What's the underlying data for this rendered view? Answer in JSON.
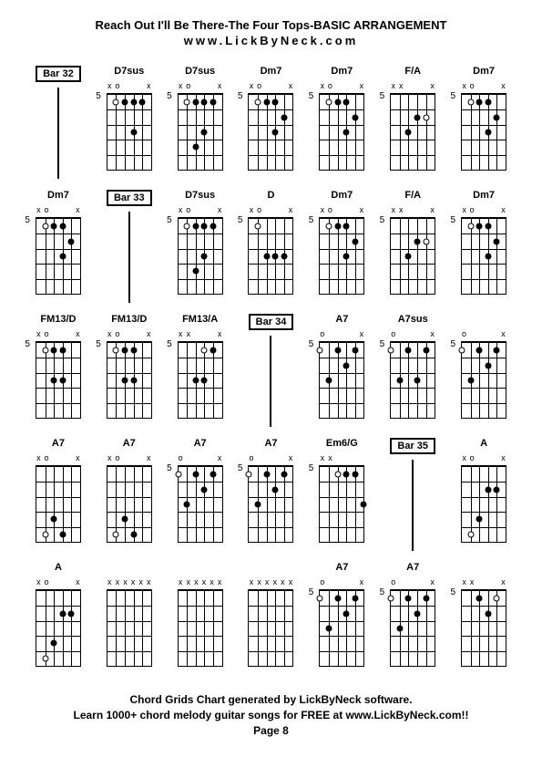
{
  "header": {
    "title": "Reach Out I'll Be There-The Four Tops-BASIC ARRANGEMENT",
    "subtitle": "www.LickByNeck.com"
  },
  "footer": {
    "line1": "Chord Grids Chart generated by LickByNeck software.",
    "line2": "Learn 1000+ chord melody guitar songs for FREE at www.LickByNeck.com!!",
    "line3": "Page 8"
  },
  "chart": {
    "grid_cols": 7,
    "string_count": 6,
    "fret_count": 5,
    "colors": {
      "bg": "#ffffff",
      "ink": "#000000"
    },
    "font_sizes": {
      "title": 13,
      "label": 11,
      "fret_num": 10,
      "footer": 12
    }
  },
  "chords": [
    {
      "type": "bar",
      "label": "Bar 32"
    },
    {
      "type": "chord",
      "label": "D7sus",
      "fret": "5",
      "markers": [
        "x",
        "o",
        "",
        "",
        "",
        "x"
      ],
      "dots": [
        {
          "s": 1,
          "f": 1,
          "o": 1
        },
        {
          "s": 2,
          "f": 1,
          "o": 0
        },
        {
          "s": 3,
          "f": 1,
          "o": 0
        },
        {
          "s": 4,
          "f": 1,
          "o": 0
        },
        {
          "s": 3,
          "f": 3,
          "o": 0
        }
      ]
    },
    {
      "type": "chord",
      "label": "D7sus",
      "fret": "5",
      "markers": [
        "x",
        "o",
        "",
        "",
        "",
        "x"
      ],
      "dots": [
        {
          "s": 1,
          "f": 1,
          "o": 1
        },
        {
          "s": 2,
          "f": 1,
          "o": 0
        },
        {
          "s": 3,
          "f": 1,
          "o": 0
        },
        {
          "s": 4,
          "f": 1,
          "o": 0
        },
        {
          "s": 2,
          "f": 4,
          "o": 0
        },
        {
          "s": 3,
          "f": 3,
          "o": 0
        }
      ]
    },
    {
      "type": "chord",
      "label": "Dm7",
      "fret": "5",
      "markers": [
        "x",
        "o",
        "",
        "",
        "",
        "x"
      ],
      "dots": [
        {
          "s": 1,
          "f": 1,
          "o": 1
        },
        {
          "s": 2,
          "f": 1,
          "o": 0
        },
        {
          "s": 3,
          "f": 1,
          "o": 0
        },
        {
          "s": 4,
          "f": 2,
          "o": 0
        },
        {
          "s": 3,
          "f": 3,
          "o": 0
        }
      ]
    },
    {
      "type": "chord",
      "label": "Dm7",
      "fret": "5",
      "markers": [
        "x",
        "o",
        "",
        "",
        "",
        "x"
      ],
      "dots": [
        {
          "s": 1,
          "f": 1,
          "o": 1
        },
        {
          "s": 2,
          "f": 1,
          "o": 0
        },
        {
          "s": 3,
          "f": 1,
          "o": 0
        },
        {
          "s": 4,
          "f": 2,
          "o": 0
        },
        {
          "s": 3,
          "f": 3,
          "o": 0
        }
      ]
    },
    {
      "type": "chord",
      "label": "F/A",
      "fret": "5",
      "markers": [
        "x",
        "x",
        "",
        "",
        "",
        "x"
      ],
      "dots": [
        {
          "s": 2,
          "f": 3,
          "o": 0
        },
        {
          "s": 3,
          "f": 2,
          "o": 0
        },
        {
          "s": 4,
          "f": 2,
          "o": 1
        }
      ]
    },
    {
      "type": "chord",
      "label": "Dm7",
      "fret": "5",
      "markers": [
        "x",
        "o",
        "",
        "",
        "",
        "x"
      ],
      "dots": [
        {
          "s": 1,
          "f": 1,
          "o": 1
        },
        {
          "s": 2,
          "f": 1,
          "o": 0
        },
        {
          "s": 3,
          "f": 1,
          "o": 0
        },
        {
          "s": 4,
          "f": 2,
          "o": 0
        },
        {
          "s": 3,
          "f": 3,
          "o": 0
        }
      ]
    },
    {
      "type": "chord",
      "label": "Dm7",
      "fret": "5",
      "markers": [
        "x",
        "o",
        "",
        "",
        "",
        "x"
      ],
      "dots": [
        {
          "s": 1,
          "f": 1,
          "o": 1
        },
        {
          "s": 2,
          "f": 1,
          "o": 0
        },
        {
          "s": 3,
          "f": 1,
          "o": 0
        },
        {
          "s": 4,
          "f": 2,
          "o": 0
        },
        {
          "s": 3,
          "f": 3,
          "o": 0
        }
      ]
    },
    {
      "type": "bar",
      "label": "Bar 33"
    },
    {
      "type": "chord",
      "label": "D7sus",
      "fret": "5",
      "markers": [
        "x",
        "o",
        "",
        "",
        "",
        "x"
      ],
      "dots": [
        {
          "s": 1,
          "f": 1,
          "o": 1
        },
        {
          "s": 2,
          "f": 1,
          "o": 0
        },
        {
          "s": 3,
          "f": 1,
          "o": 0
        },
        {
          "s": 4,
          "f": 1,
          "o": 0
        },
        {
          "s": 2,
          "f": 4,
          "o": 0
        },
        {
          "s": 3,
          "f": 3,
          "o": 0
        }
      ]
    },
    {
      "type": "chord",
      "label": "D",
      "fret": "5",
      "markers": [
        "x",
        "o",
        "",
        "",
        "",
        "x"
      ],
      "dots": [
        {
          "s": 1,
          "f": 1,
          "o": 1
        },
        {
          "s": 2,
          "f": 3,
          "o": 0
        },
        {
          "s": 3,
          "f": 3,
          "o": 0
        },
        {
          "s": 4,
          "f": 3,
          "o": 0
        }
      ]
    },
    {
      "type": "chord",
      "label": "Dm7",
      "fret": "5",
      "markers": [
        "x",
        "o",
        "",
        "",
        "",
        "x"
      ],
      "dots": [
        {
          "s": 1,
          "f": 1,
          "o": 1
        },
        {
          "s": 2,
          "f": 1,
          "o": 0
        },
        {
          "s": 3,
          "f": 1,
          "o": 0
        },
        {
          "s": 4,
          "f": 2,
          "o": 0
        },
        {
          "s": 3,
          "f": 3,
          "o": 0
        }
      ]
    },
    {
      "type": "chord",
      "label": "F/A",
      "fret": "5",
      "markers": [
        "x",
        "x",
        "",
        "",
        "",
        "x"
      ],
      "dots": [
        {
          "s": 2,
          "f": 3,
          "o": 0
        },
        {
          "s": 3,
          "f": 2,
          "o": 0
        },
        {
          "s": 4,
          "f": 2,
          "o": 1
        }
      ]
    },
    {
      "type": "chord",
      "label": "Dm7",
      "fret": "5",
      "markers": [
        "x",
        "o",
        "",
        "",
        "",
        "x"
      ],
      "dots": [
        {
          "s": 1,
          "f": 1,
          "o": 1
        },
        {
          "s": 2,
          "f": 1,
          "o": 0
        },
        {
          "s": 3,
          "f": 1,
          "o": 0
        },
        {
          "s": 4,
          "f": 2,
          "o": 0
        },
        {
          "s": 3,
          "f": 3,
          "o": 0
        }
      ]
    },
    {
      "type": "chord",
      "label": "FM13/D",
      "fret": "5",
      "markers": [
        "x",
        "o",
        "",
        "",
        "",
        "x"
      ],
      "dots": [
        {
          "s": 1,
          "f": 1,
          "o": 1
        },
        {
          "s": 2,
          "f": 1,
          "o": 0
        },
        {
          "s": 3,
          "f": 1,
          "o": 0
        },
        {
          "s": 2,
          "f": 3,
          "o": 0
        },
        {
          "s": 3,
          "f": 3,
          "o": 0
        }
      ]
    },
    {
      "type": "chord",
      "label": "FM13/D",
      "fret": "5",
      "markers": [
        "x",
        "o",
        "",
        "",
        "",
        "x"
      ],
      "dots": [
        {
          "s": 1,
          "f": 1,
          "o": 1
        },
        {
          "s": 2,
          "f": 1,
          "o": 0
        },
        {
          "s": 3,
          "f": 1,
          "o": 0
        },
        {
          "s": 2,
          "f": 3,
          "o": 0
        },
        {
          "s": 3,
          "f": 3,
          "o": 0
        }
      ]
    },
    {
      "type": "chord",
      "label": "FM13/A",
      "fret": "5",
      "markers": [
        "x",
        "x",
        "",
        "",
        "",
        "x"
      ],
      "dots": [
        {
          "s": 2,
          "f": 3,
          "o": 0
        },
        {
          "s": 3,
          "f": 3,
          "o": 0
        },
        {
          "s": 4,
          "f": 1,
          "o": 0
        },
        {
          "s": 3,
          "f": 1,
          "o": 1
        }
      ]
    },
    {
      "type": "bar",
      "label": "Bar 34"
    },
    {
      "type": "chord",
      "label": "A7",
      "fret": "5",
      "markers": [
        "o",
        "",
        "",
        "",
        "",
        "x"
      ],
      "dots": [
        {
          "s": 0,
          "f": 1,
          "o": 1
        },
        {
          "s": 1,
          "f": 3,
          "o": 0
        },
        {
          "s": 2,
          "f": 1,
          "o": 0
        },
        {
          "s": 3,
          "f": 2,
          "o": 0
        },
        {
          "s": 4,
          "f": 1,
          "o": 0
        }
      ]
    },
    {
      "type": "chord",
      "label": "A7sus",
      "fret": "5",
      "markers": [
        "o",
        "",
        "",
        "",
        "",
        "x"
      ],
      "dots": [
        {
          "s": 0,
          "f": 1,
          "o": 1
        },
        {
          "s": 1,
          "f": 3,
          "o": 0
        },
        {
          "s": 2,
          "f": 1,
          "o": 0
        },
        {
          "s": 3,
          "f": 3,
          "o": 0
        },
        {
          "s": 4,
          "f": 1,
          "o": 0
        }
      ]
    },
    {
      "type": "chord",
      "label": "",
      "fret": "5",
      "markers": [
        "o",
        "",
        "",
        "",
        "",
        "x"
      ],
      "dots": [
        {
          "s": 0,
          "f": 1,
          "o": 1
        },
        {
          "s": 1,
          "f": 3,
          "o": 0
        },
        {
          "s": 2,
          "f": 1,
          "o": 0
        },
        {
          "s": 3,
          "f": 2,
          "o": 0
        },
        {
          "s": 4,
          "f": 1,
          "o": 0
        }
      ]
    },
    {
      "type": "chord",
      "label": "A7",
      "fret": "",
      "markers": [
        "x",
        "o",
        "",
        "",
        "",
        "x"
      ],
      "dots": [
        {
          "s": 1,
          "f": 5,
          "o": 1
        },
        {
          "s": 2,
          "f": 4,
          "o": 0
        },
        {
          "s": 3,
          "f": 5,
          "o": 0
        }
      ]
    },
    {
      "type": "chord",
      "label": "A7",
      "fret": "",
      "markers": [
        "x",
        "o",
        "",
        "",
        "",
        "x"
      ],
      "dots": [
        {
          "s": 1,
          "f": 5,
          "o": 1
        },
        {
          "s": 2,
          "f": 4,
          "o": 0
        },
        {
          "s": 3,
          "f": 5,
          "o": 0
        }
      ]
    },
    {
      "type": "chord",
      "label": "A7",
      "fret": "5",
      "markers": [
        "o",
        "",
        "",
        "",
        "",
        "x"
      ],
      "dots": [
        {
          "s": 0,
          "f": 1,
          "o": 1
        },
        {
          "s": 1,
          "f": 3,
          "o": 0
        },
        {
          "s": 2,
          "f": 1,
          "o": 0
        },
        {
          "s": 3,
          "f": 2,
          "o": 0
        },
        {
          "s": 4,
          "f": 1,
          "o": 0
        }
      ]
    },
    {
      "type": "chord",
      "label": "A7",
      "fret": "5",
      "markers": [
        "o",
        "",
        "",
        "",
        "",
        "x"
      ],
      "dots": [
        {
          "s": 0,
          "f": 1,
          "o": 1
        },
        {
          "s": 1,
          "f": 3,
          "o": 0
        },
        {
          "s": 2,
          "f": 1,
          "o": 0
        },
        {
          "s": 3,
          "f": 2,
          "o": 0
        },
        {
          "s": 4,
          "f": 1,
          "o": 0
        }
      ]
    },
    {
      "type": "chord",
      "label": "Em6/G",
      "fret": "5",
      "markers": [
        "x",
        "x",
        "",
        "",
        "",
        ""
      ],
      "dots": [
        {
          "s": 2,
          "f": 1,
          "o": 1
        },
        {
          "s": 3,
          "f": 1,
          "o": 0
        },
        {
          "s": 4,
          "f": 1,
          "o": 0
        },
        {
          "s": 5,
          "f": 3,
          "o": 0
        }
      ]
    },
    {
      "type": "bar",
      "label": "Bar 35"
    },
    {
      "type": "chord",
      "label": "A",
      "fret": "",
      "markers": [
        "x",
        "o",
        "",
        "",
        "",
        "x"
      ],
      "dots": [
        {
          "s": 1,
          "f": 5,
          "o": 1
        },
        {
          "s": 2,
          "f": 4,
          "o": 0
        },
        {
          "s": 3,
          "f": 2,
          "o": 0
        },
        {
          "s": 4,
          "f": 2,
          "o": 0
        }
      ]
    },
    {
      "type": "chord",
      "label": "A",
      "fret": "",
      "markers": [
        "x",
        "o",
        "",
        "",
        "",
        "x"
      ],
      "dots": [
        {
          "s": 1,
          "f": 5,
          "o": 1
        },
        {
          "s": 2,
          "f": 4,
          "o": 0
        },
        {
          "s": 3,
          "f": 2,
          "o": 0
        },
        {
          "s": 4,
          "f": 2,
          "o": 0
        }
      ]
    },
    {
      "type": "chord",
      "label": "",
      "fret": "",
      "markers": [
        "x",
        "x",
        "x",
        "x",
        "x",
        "x"
      ],
      "dots": []
    },
    {
      "type": "chord",
      "label": "",
      "fret": "",
      "markers": [
        "x",
        "x",
        "x",
        "x",
        "x",
        "x"
      ],
      "dots": []
    },
    {
      "type": "chord",
      "label": "",
      "fret": "",
      "markers": [
        "x",
        "x",
        "x",
        "x",
        "x",
        "x"
      ],
      "dots": []
    },
    {
      "type": "chord",
      "label": "A7",
      "fret": "5",
      "markers": [
        "o",
        "",
        "",
        "",
        "",
        "x"
      ],
      "dots": [
        {
          "s": 0,
          "f": 1,
          "o": 1
        },
        {
          "s": 1,
          "f": 3,
          "o": 0
        },
        {
          "s": 2,
          "f": 1,
          "o": 0
        },
        {
          "s": 3,
          "f": 2,
          "o": 0
        },
        {
          "s": 4,
          "f": 1,
          "o": 0
        }
      ]
    },
    {
      "type": "chord",
      "label": "A7",
      "fret": "5",
      "markers": [
        "o",
        "",
        "",
        "",
        "",
        "x"
      ],
      "dots": [
        {
          "s": 0,
          "f": 1,
          "o": 1
        },
        {
          "s": 1,
          "f": 3,
          "o": 0
        },
        {
          "s": 2,
          "f": 1,
          "o": 0
        },
        {
          "s": 3,
          "f": 2,
          "o": 0
        },
        {
          "s": 4,
          "f": 1,
          "o": 0
        }
      ]
    },
    {
      "type": "chord",
      "label": "",
      "fret": "5",
      "markers": [
        "x",
        "x",
        "",
        "",
        "",
        "x"
      ],
      "dots": [
        {
          "s": 2,
          "f": 1,
          "o": 0
        },
        {
          "s": 3,
          "f": 2,
          "o": 0
        },
        {
          "s": 4,
          "f": 1,
          "o": 1
        }
      ]
    }
  ]
}
